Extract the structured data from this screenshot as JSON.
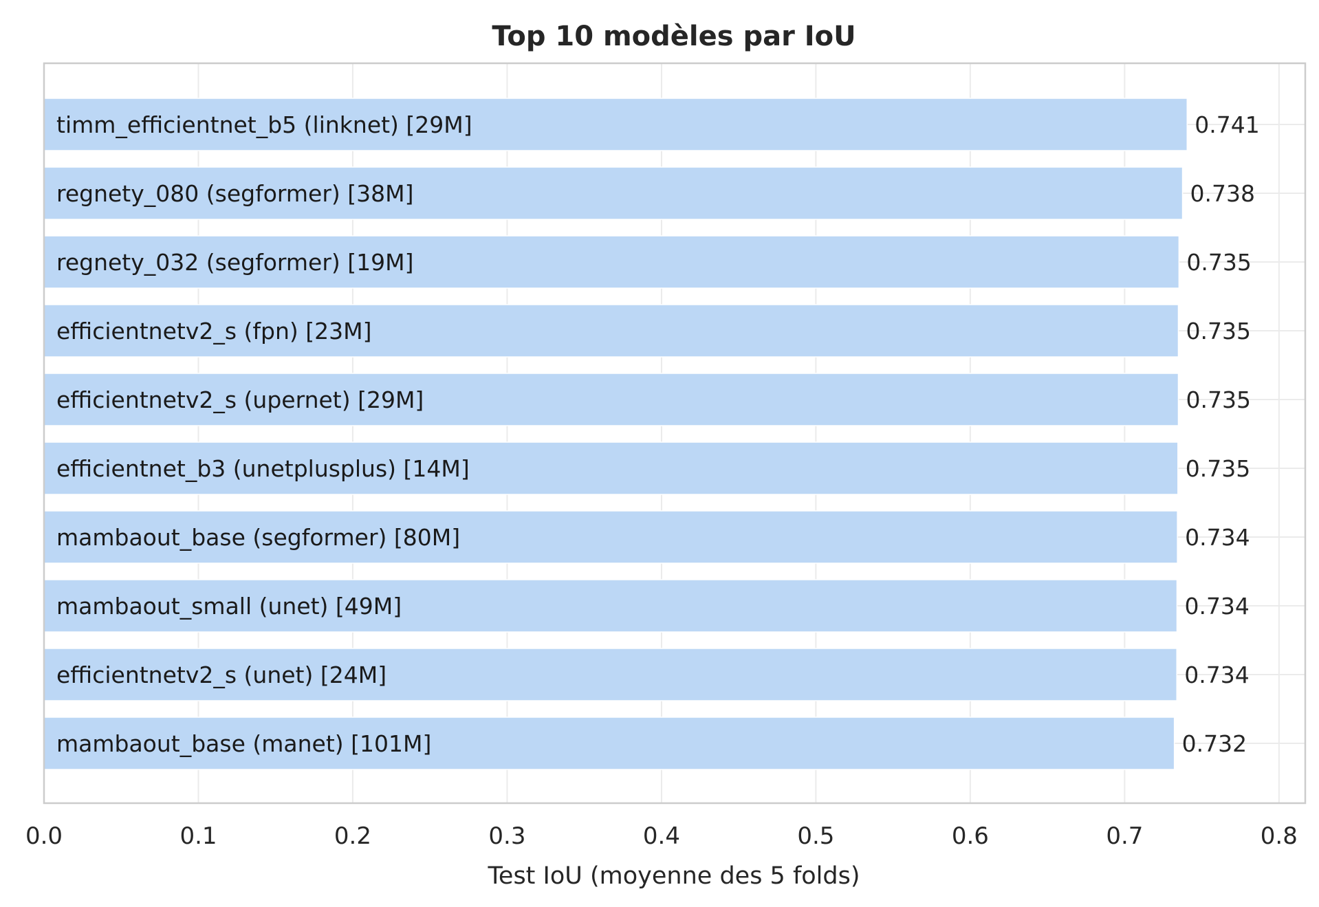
{
  "chart_data": {
    "type": "bar",
    "orientation": "horizontal",
    "title": "Top 10 modèles par IoU",
    "xlabel": "Test IoU (moyenne des 5 folds)",
    "ylabel": "",
    "xlim": [
      0,
      0.817
    ],
    "xticks": [
      0.0,
      0.1,
      0.2,
      0.3,
      0.4,
      0.5,
      0.6,
      0.7,
      0.8
    ],
    "xtick_labels": [
      "0.0",
      "0.1",
      "0.2",
      "0.3",
      "0.4",
      "0.5",
      "0.6",
      "0.7",
      "0.8"
    ],
    "grid": true,
    "bar_color": "#bcd7f5",
    "categories": [
      "timm_efficientnet_b5 (linknet) [29M]",
      "regnety_080 (segformer) [38M]",
      "regnety_032 (segformer) [19M]",
      "efficientnetv2_s (fpn) [23M]",
      "efficientnetv2_s (upernet) [29M]",
      "efficientnet_b3 (unetplusplus) [14M]",
      "mambaout_base (segformer) [80M]",
      "mambaout_small (unet) [49M]",
      "efficientnetv2_s (unet) [24M]",
      "mambaout_base (manet) [101M]"
    ],
    "values": [
      0.7405,
      0.7375,
      0.7352,
      0.7348,
      0.7348,
      0.7345,
      0.7342,
      0.7339,
      0.7338,
      0.7322
    ],
    "value_labels": [
      "0.741",
      "0.738",
      "0.735",
      "0.735",
      "0.735",
      "0.735",
      "0.734",
      "0.734",
      "0.734",
      "0.732"
    ]
  }
}
